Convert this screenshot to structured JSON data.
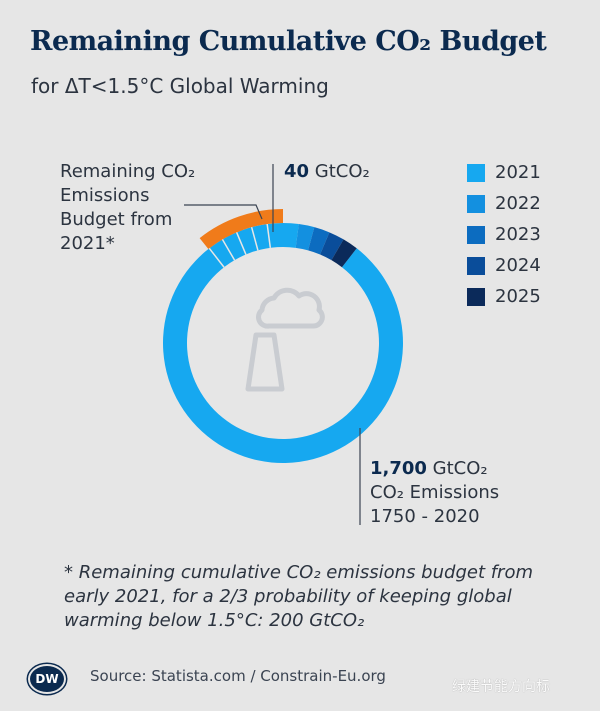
{
  "title": "Remaining Cumulative CO₂ Budget",
  "subtitle": "for ΔT<1.5°C Global Warming",
  "chart_data": {
    "type": "pie",
    "title": "Remaining Cumulative CO₂ Budget",
    "subtitle": "for ΔT<1.5°C Global Warming",
    "unit": "GtCO₂",
    "slices": [
      {
        "label": "1750 - 2020",
        "value": 1700,
        "color": "#16a8f0"
      },
      {
        "label": "2021",
        "value": 40,
        "color": "#16a8f0"
      },
      {
        "label": "2022",
        "value": 40,
        "color": "#1390e0"
      },
      {
        "label": "2023",
        "value": 40,
        "color": "#0c6cc0"
      },
      {
        "label": "2024",
        "value": 40,
        "color": "#0a4d9a"
      },
      {
        "label": "2025",
        "value": 40,
        "color": "#0b2a5a"
      }
    ],
    "remaining_budget_from_2021": 200,
    "legend": [
      {
        "label": "2021",
        "color": "#16a8f0"
      },
      {
        "label": "2022",
        "color": "#1390e0"
      },
      {
        "label": "2023",
        "color": "#0c6cc0"
      },
      {
        "label": "2024",
        "color": "#0a4d9a"
      },
      {
        "label": "2025",
        "color": "#0b2a5a"
      }
    ]
  },
  "annotations": {
    "remaining_line1": "Remaining CO₂",
    "remaining_line2": "Emissions",
    "remaining_line3": "Budget from",
    "remaining_line4": "2021*",
    "per_year_value": "40",
    "per_year_unit": " GtCO₂",
    "historic_value": "1,700",
    "historic_unit": " GtCO₂",
    "historic_line2": "CO₂ Emissions",
    "historic_line3": "1750 - 2020"
  },
  "footnote": "* Remaining cumulative CO₂ emissions budget from early 2021, for a 2/3 probability of keeping global warming below 1.5°C: 200 GtCO₂",
  "source": "Source: Statista.com / Constrain-Eu.org",
  "logo_text": "DW",
  "watermark": "绿建节能方向标",
  "colors": {
    "budget_outline": "#f07b1a",
    "icon": "#c9ccd1",
    "title": "#0b2a4f"
  }
}
